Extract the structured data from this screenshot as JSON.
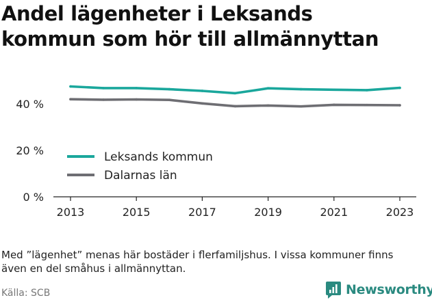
{
  "title_lines": [
    "Andel lägenheter i Leksands",
    "kommun som hör till allmännyttan"
  ],
  "note_lines": [
    "Med ”lägenhet” menas här bostäder i flerfamiljshus. I vissa kommuner finns",
    "även en del småhus i allmännyttan."
  ],
  "source": "Källa: SCB",
  "brand": {
    "name": "Newsworthy",
    "color": "#2a8a80"
  },
  "chart_data": {
    "type": "line",
    "x": [
      2013,
      2014,
      2015,
      2016,
      2017,
      2018,
      2019,
      2020,
      2021,
      2022,
      2023
    ],
    "x_ticks": [
      "2013",
      "2015",
      "2017",
      "2019",
      "2021",
      "2023"
    ],
    "y_ticks": [
      "0 %",
      "20 %",
      "40 %"
    ],
    "ylim": [
      0,
      50
    ],
    "grid": false,
    "legend_position": "left",
    "series": [
      {
        "name": "Leksands kommun",
        "color": "#1aa79c",
        "values": [
          47.5,
          46.8,
          46.8,
          46.3,
          45.6,
          44.6,
          46.7,
          46.3,
          46.1,
          45.9,
          46.9
        ]
      },
      {
        "name": "Dalarnas län",
        "color": "#6e6e73",
        "values": [
          42.0,
          41.8,
          41.9,
          41.7,
          40.2,
          39.0,
          39.3,
          38.9,
          39.6,
          39.5,
          39.4
        ]
      }
    ]
  }
}
